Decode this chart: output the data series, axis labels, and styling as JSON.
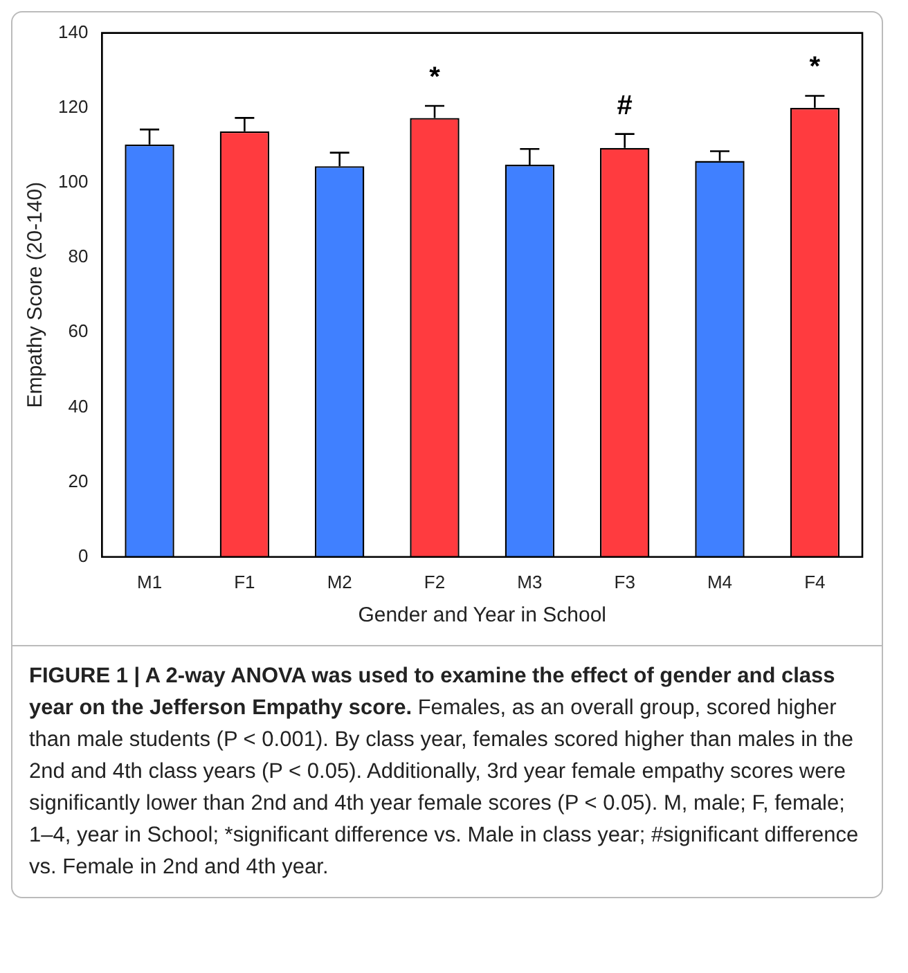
{
  "chart_data": {
    "type": "bar",
    "xlabel": "Gender and Year in School",
    "ylabel": "Empathy Score (20-140)",
    "categories": [
      "M1",
      "F1",
      "M2",
      "F2",
      "M3",
      "F3",
      "M4",
      "F4"
    ],
    "values": [
      110.2,
      113.7,
      104.4,
      117.3,
      104.8,
      109.3,
      105.8,
      120
    ],
    "errors": [
      4,
      3.6,
      3.6,
      3.2,
      4.2,
      3.7,
      2.6,
      3.2
    ],
    "colors": [
      "#4080ff",
      "#ff3b3f",
      "#4080ff",
      "#ff3b3f",
      "#4080ff",
      "#ff3b3f",
      "#4080ff",
      "#ff3b3f"
    ],
    "ylim": [
      0,
      140
    ],
    "yticks": [
      0,
      20,
      40,
      60,
      80,
      100,
      120,
      140
    ],
    "legend": false,
    "annotations": [
      {
        "text": "*",
        "x": "F2",
        "y": 117.3
      },
      {
        "text": "#",
        "x": "F3",
        "y": 109.3
      },
      {
        "text": "*",
        "x": "F4",
        "y": 120
      },
      "FIGURE 1 | A 2-way ANOVA was used to examine the effect of gender and class year on the Jefferson Empathy score.",
      "Females, as an overall group, scored higher than male students (P < 0.001). By class year, females scored higher than males in the 2nd and 4th class years (P < 0.05). Additionally, 3rd year female empathy scores were significantly lower than 2nd and 4th year female scores (P < 0.05). M, male; F, female; 1–4, year in School; *significant difference vs. Male in class year; #significant difference vs. Female in 2nd and 4th year."
    ]
  }
}
